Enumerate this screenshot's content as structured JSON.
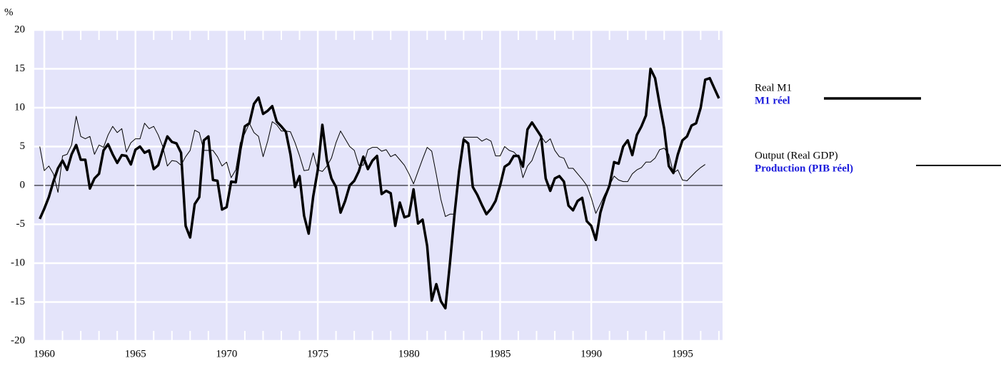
{
  "chart_data": {
    "type": "line",
    "y_label": "%",
    "x": [
      1959.75,
      1960,
      1960.25,
      1960.5,
      1960.75,
      1961,
      1961.25,
      1961.5,
      1961.75,
      1962,
      1962.25,
      1962.5,
      1962.75,
      1963,
      1963.25,
      1963.5,
      1963.75,
      1964,
      1964.25,
      1964.5,
      1964.75,
      1965,
      1965.25,
      1965.5,
      1965.75,
      1966,
      1966.25,
      1966.5,
      1966.75,
      1967,
      1967.25,
      1967.5,
      1967.75,
      1968,
      1968.25,
      1968.5,
      1968.75,
      1969,
      1969.25,
      1969.5,
      1969.75,
      1970,
      1970.25,
      1970.5,
      1970.75,
      1971,
      1971.25,
      1971.5,
      1971.75,
      1972,
      1972.25,
      1972.5,
      1972.75,
      1973,
      1973.25,
      1973.5,
      1973.75,
      1974,
      1974.25,
      1974.5,
      1974.75,
      1975,
      1975.25,
      1975.5,
      1975.75,
      1976,
      1976.25,
      1976.5,
      1976.75,
      1977,
      1977.25,
      1977.5,
      1977.75,
      1978,
      1978.25,
      1978.5,
      1978.75,
      1979,
      1979.25,
      1979.5,
      1979.75,
      1980,
      1980.25,
      1980.5,
      1980.75,
      1981,
      1981.25,
      1981.5,
      1981.75,
      1982,
      1982.25,
      1982.5,
      1982.75,
      1983,
      1983.25,
      1983.5,
      1983.75,
      1984,
      1984.25,
      1984.5,
      1984.75,
      1985,
      1985.25,
      1985.5,
      1985.75,
      1986,
      1986.25,
      1986.5,
      1986.75,
      1987,
      1987.25,
      1987.5,
      1987.75,
      1988,
      1988.25,
      1988.5,
      1988.75,
      1989,
      1989.25,
      1989.5,
      1989.75,
      1990,
      1990.25,
      1990.5,
      1990.75,
      1991,
      1991.25,
      1991.5,
      1991.75,
      1992,
      1992.25,
      1992.5,
      1992.75,
      1993,
      1993.25,
      1993.5,
      1993.75,
      1994,
      1994.25,
      1994.5,
      1994.75,
      1995,
      1995.25,
      1995.5,
      1995.75,
      1996,
      1996.25,
      1996.5,
      1996.75,
      1997
    ],
    "series": [
      {
        "name": "Real M1",
        "name_fr": "M1 réel",
        "color": "#000000",
        "width": 3.5,
        "values": [
          -4.3,
          -3.0,
          -1.5,
          0.5,
          2.2,
          3.2,
          2.0,
          4.0,
          5.2,
          3.3,
          3.3,
          -0.4,
          0.9,
          1.5,
          4.5,
          5.3,
          4.0,
          2.9,
          3.9,
          3.8,
          2.7,
          4.6,
          5.0,
          4.2,
          4.5,
          2.1,
          2.6,
          4.6,
          6.3,
          5.6,
          5.4,
          4.2,
          -5.2,
          -6.7,
          -2.4,
          -1.5,
          5.8,
          6.3,
          0.7,
          0.6,
          -3.1,
          -2.8,
          0.5,
          0.4,
          4.6,
          7.6,
          8.0,
          10.5,
          11.3,
          9.2,
          9.6,
          10.2,
          8.2,
          7.6,
          6.9,
          4.0,
          -0.2,
          1.2,
          -3.9,
          -6.2,
          -1.4,
          2.0,
          7.8,
          3.2,
          0.9,
          -0.2,
          -3.5,
          -2.0,
          0.0,
          0.6,
          1.8,
          3.7,
          2.1,
          3.2,
          3.8,
          -1.1,
          -0.7,
          -1.0,
          -5.2,
          -2.2,
          -4.1,
          -3.9,
          -0.5,
          -4.9,
          -4.4,
          -7.8,
          -14.8,
          -12.7,
          -14.9,
          -15.8,
          -10.0,
          -3.7,
          1.8,
          5.9,
          5.4,
          -0.2,
          -1.2,
          -2.5,
          -3.7,
          -3.0,
          -2.0,
          0.0,
          2.4,
          2.8,
          3.8,
          3.8,
          2.4,
          7.2,
          8.1,
          7.2,
          6.3,
          0.9,
          -0.7,
          0.9,
          1.2,
          0.5,
          -2.6,
          -3.2,
          -2.0,
          -1.6,
          -4.6,
          -5.2,
          -7.0,
          -3.5,
          -1.5,
          0.0,
          3.0,
          2.8,
          5.0,
          5.8,
          3.9,
          6.5,
          7.6,
          9.0,
          15.0,
          13.8,
          10.4,
          7.3,
          2.5,
          1.6,
          4.0,
          5.8,
          6.3,
          7.7,
          8.0,
          10.0,
          13.6,
          13.8,
          12.5,
          11.2
        ]
      },
      {
        "name": "Output (Real GDP)",
        "name_fr": "Production (PIB réel)",
        "color": "#000000",
        "width": 1,
        "values": [
          5.0,
          1.9,
          2.5,
          1.5,
          -0.9,
          3.8,
          4.0,
          5.2,
          8.9,
          6.3,
          6.0,
          6.3,
          4.0,
          5.2,
          4.9,
          6.5,
          7.6,
          6.8,
          7.3,
          4.3,
          5.5,
          6.0,
          6.0,
          8.0,
          7.3,
          7.6,
          6.5,
          5.0,
          2.5,
          3.2,
          3.1,
          2.6,
          3.7,
          4.5,
          7.1,
          6.8,
          4.5,
          4.5,
          4.5,
          3.7,
          2.5,
          3.0,
          1.0,
          2.0,
          5.5,
          6.7,
          8.0,
          6.8,
          6.3,
          3.7,
          5.7,
          8.2,
          7.8,
          7.0,
          7.0,
          6.9,
          5.5,
          3.8,
          1.9,
          2.0,
          4.2,
          2.0,
          1.8,
          2.5,
          3.5,
          5.5,
          7.0,
          6.0,
          5.0,
          4.5,
          2.6,
          2.6,
          4.6,
          4.9,
          4.9,
          4.4,
          4.6,
          3.7,
          4.0,
          3.3,
          2.6,
          1.5,
          0.2,
          1.8,
          3.4,
          4.9,
          4.4,
          1.4,
          -1.8,
          -4.0,
          -3.7,
          -3.7,
          2.3,
          6.2,
          6.2,
          6.2,
          6.2,
          5.7,
          6.0,
          5.7,
          3.8,
          3.8,
          5.0,
          4.5,
          4.3,
          3.7,
          1.0,
          2.5,
          3.2,
          4.8,
          6.3,
          5.5,
          6.0,
          4.5,
          3.7,
          3.5,
          2.2,
          2.2,
          1.5,
          0.8,
          0.0,
          -1.6,
          -3.6,
          -2.4,
          -1.1,
          0.0,
          1.2,
          0.7,
          0.5,
          0.5,
          1.5,
          2.0,
          2.3,
          3.0,
          3.0,
          3.5,
          4.6,
          4.8,
          4.0,
          1.6,
          2.0,
          0.7,
          0.6,
          1.2,
          1.8,
          2.3,
          2.7,
          null,
          null,
          null
        ]
      }
    ],
    "xlim": [
      1959.45,
      1997.2
    ],
    "xticks": [
      1960,
      1965,
      1970,
      1975,
      1980,
      1985,
      1990,
      1995
    ],
    "ylim": [
      -20,
      20
    ],
    "yticks": [
      -20,
      -15,
      -10,
      -5,
      0,
      5,
      10,
      15,
      20
    ],
    "grid": true,
    "background": "#e4e4fa"
  }
}
